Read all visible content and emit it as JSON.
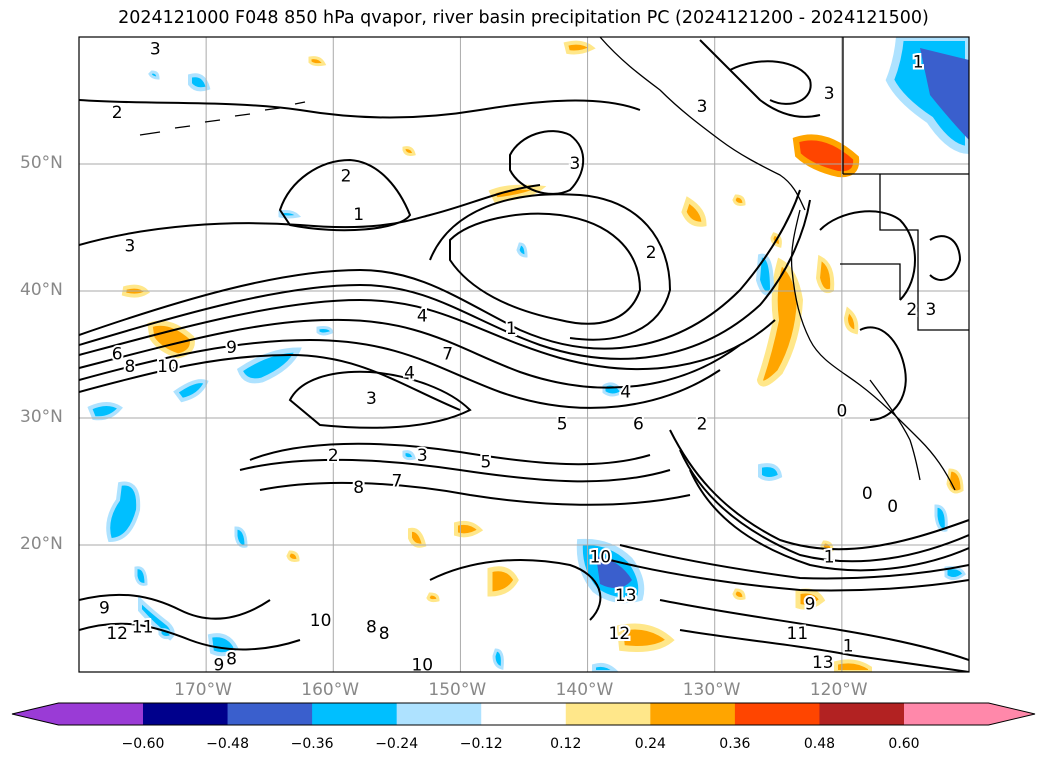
{
  "title": "2024121000 F048 850 hPa qvapor, river basin precipitation PC (2024121200 - 2024121500)",
  "map": {
    "lon_range": [
      -180,
      -110
    ],
    "lat_range": [
      10,
      60
    ],
    "lat_ticks": [
      {
        "value": 50,
        "label": "50°N"
      },
      {
        "value": 40,
        "label": "40°N"
      },
      {
        "value": 30,
        "label": "30°N"
      },
      {
        "value": 20,
        "label": "20°N"
      }
    ],
    "lon_ticks": [
      {
        "value": -170,
        "label": "170°W"
      },
      {
        "value": -160,
        "label": "160°W"
      },
      {
        "value": -150,
        "label": "150°W"
      },
      {
        "value": -140,
        "label": "140°W"
      },
      {
        "value": -130,
        "label": "130°W"
      },
      {
        "value": -120,
        "label": "120°W"
      }
    ],
    "contour_labels": [
      {
        "text": "3",
        "lon": -174,
        "lat": 59
      },
      {
        "text": "2",
        "lon": -177,
        "lat": 54
      },
      {
        "text": "2",
        "lon": -159,
        "lat": 49
      },
      {
        "text": "1",
        "lon": -158,
        "lat": 46
      },
      {
        "text": "3",
        "lon": -176,
        "lat": 43.5
      },
      {
        "text": "3",
        "lon": -141,
        "lat": 50
      },
      {
        "text": "2",
        "lon": -135,
        "lat": 43
      },
      {
        "text": "4",
        "lon": -153,
        "lat": 38
      },
      {
        "text": "1",
        "lon": -146,
        "lat": 37
      },
      {
        "text": "6",
        "lon": -177,
        "lat": 35
      },
      {
        "text": "8",
        "lon": -176,
        "lat": 34
      },
      {
        "text": "9",
        "lon": -168,
        "lat": 35.5
      },
      {
        "text": "10",
        "lon": -173,
        "lat": 34
      },
      {
        "text": "7",
        "lon": -151,
        "lat": 35
      },
      {
        "text": "4",
        "lon": -154,
        "lat": 33.5
      },
      {
        "text": "3",
        "lon": -157,
        "lat": 31.5
      },
      {
        "text": "4",
        "lon": -137,
        "lat": 32
      },
      {
        "text": "6",
        "lon": -136,
        "lat": 29.5
      },
      {
        "text": "5",
        "lon": -142,
        "lat": 29.5
      },
      {
        "text": "2",
        "lon": -131,
        "lat": 29.5
      },
      {
        "text": "3",
        "lon": -153,
        "lat": 27
      },
      {
        "text": "2",
        "lon": -160,
        "lat": 27
      },
      {
        "text": "5",
        "lon": -148,
        "lat": 26.5
      },
      {
        "text": "7",
        "lon": -155,
        "lat": 25
      },
      {
        "text": "8",
        "lon": -158,
        "lat": 24.5
      },
      {
        "text": "0",
        "lon": -120,
        "lat": 30.5
      },
      {
        "text": "0",
        "lon": -118,
        "lat": 24
      },
      {
        "text": "0",
        "lon": -116,
        "lat": 23
      },
      {
        "text": "1",
        "lon": -121,
        "lat": 19
      },
      {
        "text": "10",
        "lon": -139,
        "lat": 19
      },
      {
        "text": "13",
        "lon": -137,
        "lat": 16
      },
      {
        "text": "9",
        "lon": -122.5,
        "lat": 15.3
      },
      {
        "text": "11",
        "lon": -123.5,
        "lat": 13
      },
      {
        "text": "12",
        "lon": -137.5,
        "lat": 13
      },
      {
        "text": "13",
        "lon": -121.5,
        "lat": 10.7
      },
      {
        "text": "1",
        "lon": -119.5,
        "lat": 12
      },
      {
        "text": "9",
        "lon": -178,
        "lat": 15
      },
      {
        "text": "12",
        "lon": -177,
        "lat": 13
      },
      {
        "text": "11",
        "lon": -175,
        "lat": 13.5
      },
      {
        "text": "10",
        "lon": -161,
        "lat": 14
      },
      {
        "text": "8",
        "lon": -157,
        "lat": 13.5
      },
      {
        "text": "8",
        "lon": -156,
        "lat": 13
      },
      {
        "text": "9",
        "lon": -169,
        "lat": 10.5
      },
      {
        "text": "8",
        "lon": -168,
        "lat": 11
      },
      {
        "text": "10",
        "lon": -153,
        "lat": 10.5
      },
      {
        "text": "3",
        "lon": -121,
        "lat": 55.5
      },
      {
        "text": "3",
        "lon": -131,
        "lat": 54.5
      },
      {
        "text": "1",
        "lon": -114,
        "lat": 58
      },
      {
        "text": "2",
        "lon": -114.5,
        "lat": 38.5
      },
      {
        "text": "3",
        "lon": -113,
        "lat": 38.5
      }
    ],
    "colors": {
      "contour": "#000000",
      "grid": "#aaaaaa",
      "coast": "#000000"
    }
  },
  "colorbar": {
    "levels": [
      "-0.60",
      "-0.48",
      "-0.36",
      "-0.24",
      "-0.12",
      "0.12",
      "0.24",
      "0.36",
      "0.48",
      "0.60"
    ],
    "colors": [
      "#9a3bd6",
      "#00008c",
      "#3a5fcd",
      "#00bfff",
      "#aee2ff",
      "#ffffff",
      "#ffe78a",
      "#ffa500",
      "#ff4500",
      "#b22222",
      "#ff88aa"
    ]
  }
}
